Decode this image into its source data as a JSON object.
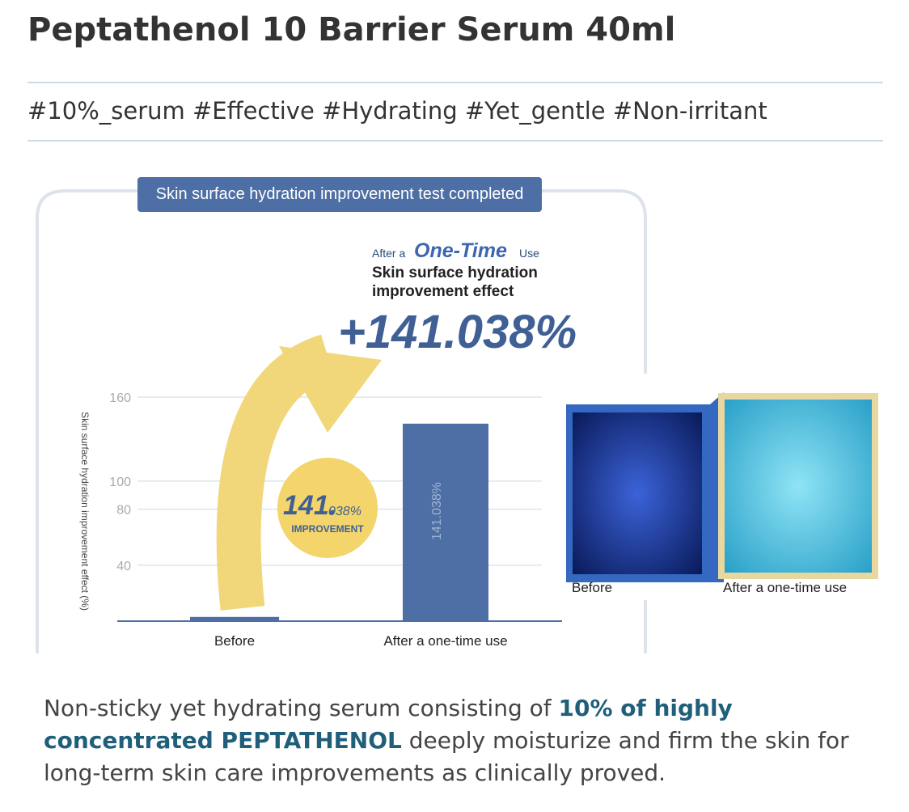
{
  "header": {
    "title": "Peptathenol 10 Barrier Serum  40ml"
  },
  "tags": "#10%_serum #Effective #Hydrating #Yet_gentle #Non-irritant",
  "chart_data": {
    "type": "bar",
    "title": "Skin surface hydration improvement test completed",
    "callout": {
      "prefix": "After a",
      "emphasis": "One-Time",
      "suffix": "Use",
      "line1": "Skin surface hydration",
      "line2": "improvement effect",
      "result": "+141.038%"
    },
    "badge": {
      "big": "141.",
      "small": "038%",
      "caption": "IMPROVEMENT"
    },
    "ylabel": "Skin surface hydration improvement effect (%)",
    "categories": [
      "Before",
      "After a one-time use"
    ],
    "values": [
      3,
      141.038
    ],
    "value_labels": [
      null,
      "141.038%"
    ],
    "color": "#4e6fa5",
    "ylim": [
      0,
      160
    ],
    "yticks": [
      40,
      80,
      100,
      160
    ],
    "grid": true
  },
  "images": {
    "labels": [
      "Before",
      "After a one-time use"
    ]
  },
  "description": {
    "parts": [
      "Non-sticky yet hydrating serum  consisting of ",
      "10% of highly concentrated PEPTATHENOL",
      " deeply moisturize and firm the skin for long-term skin care improvements as clinically proved."
    ]
  }
}
